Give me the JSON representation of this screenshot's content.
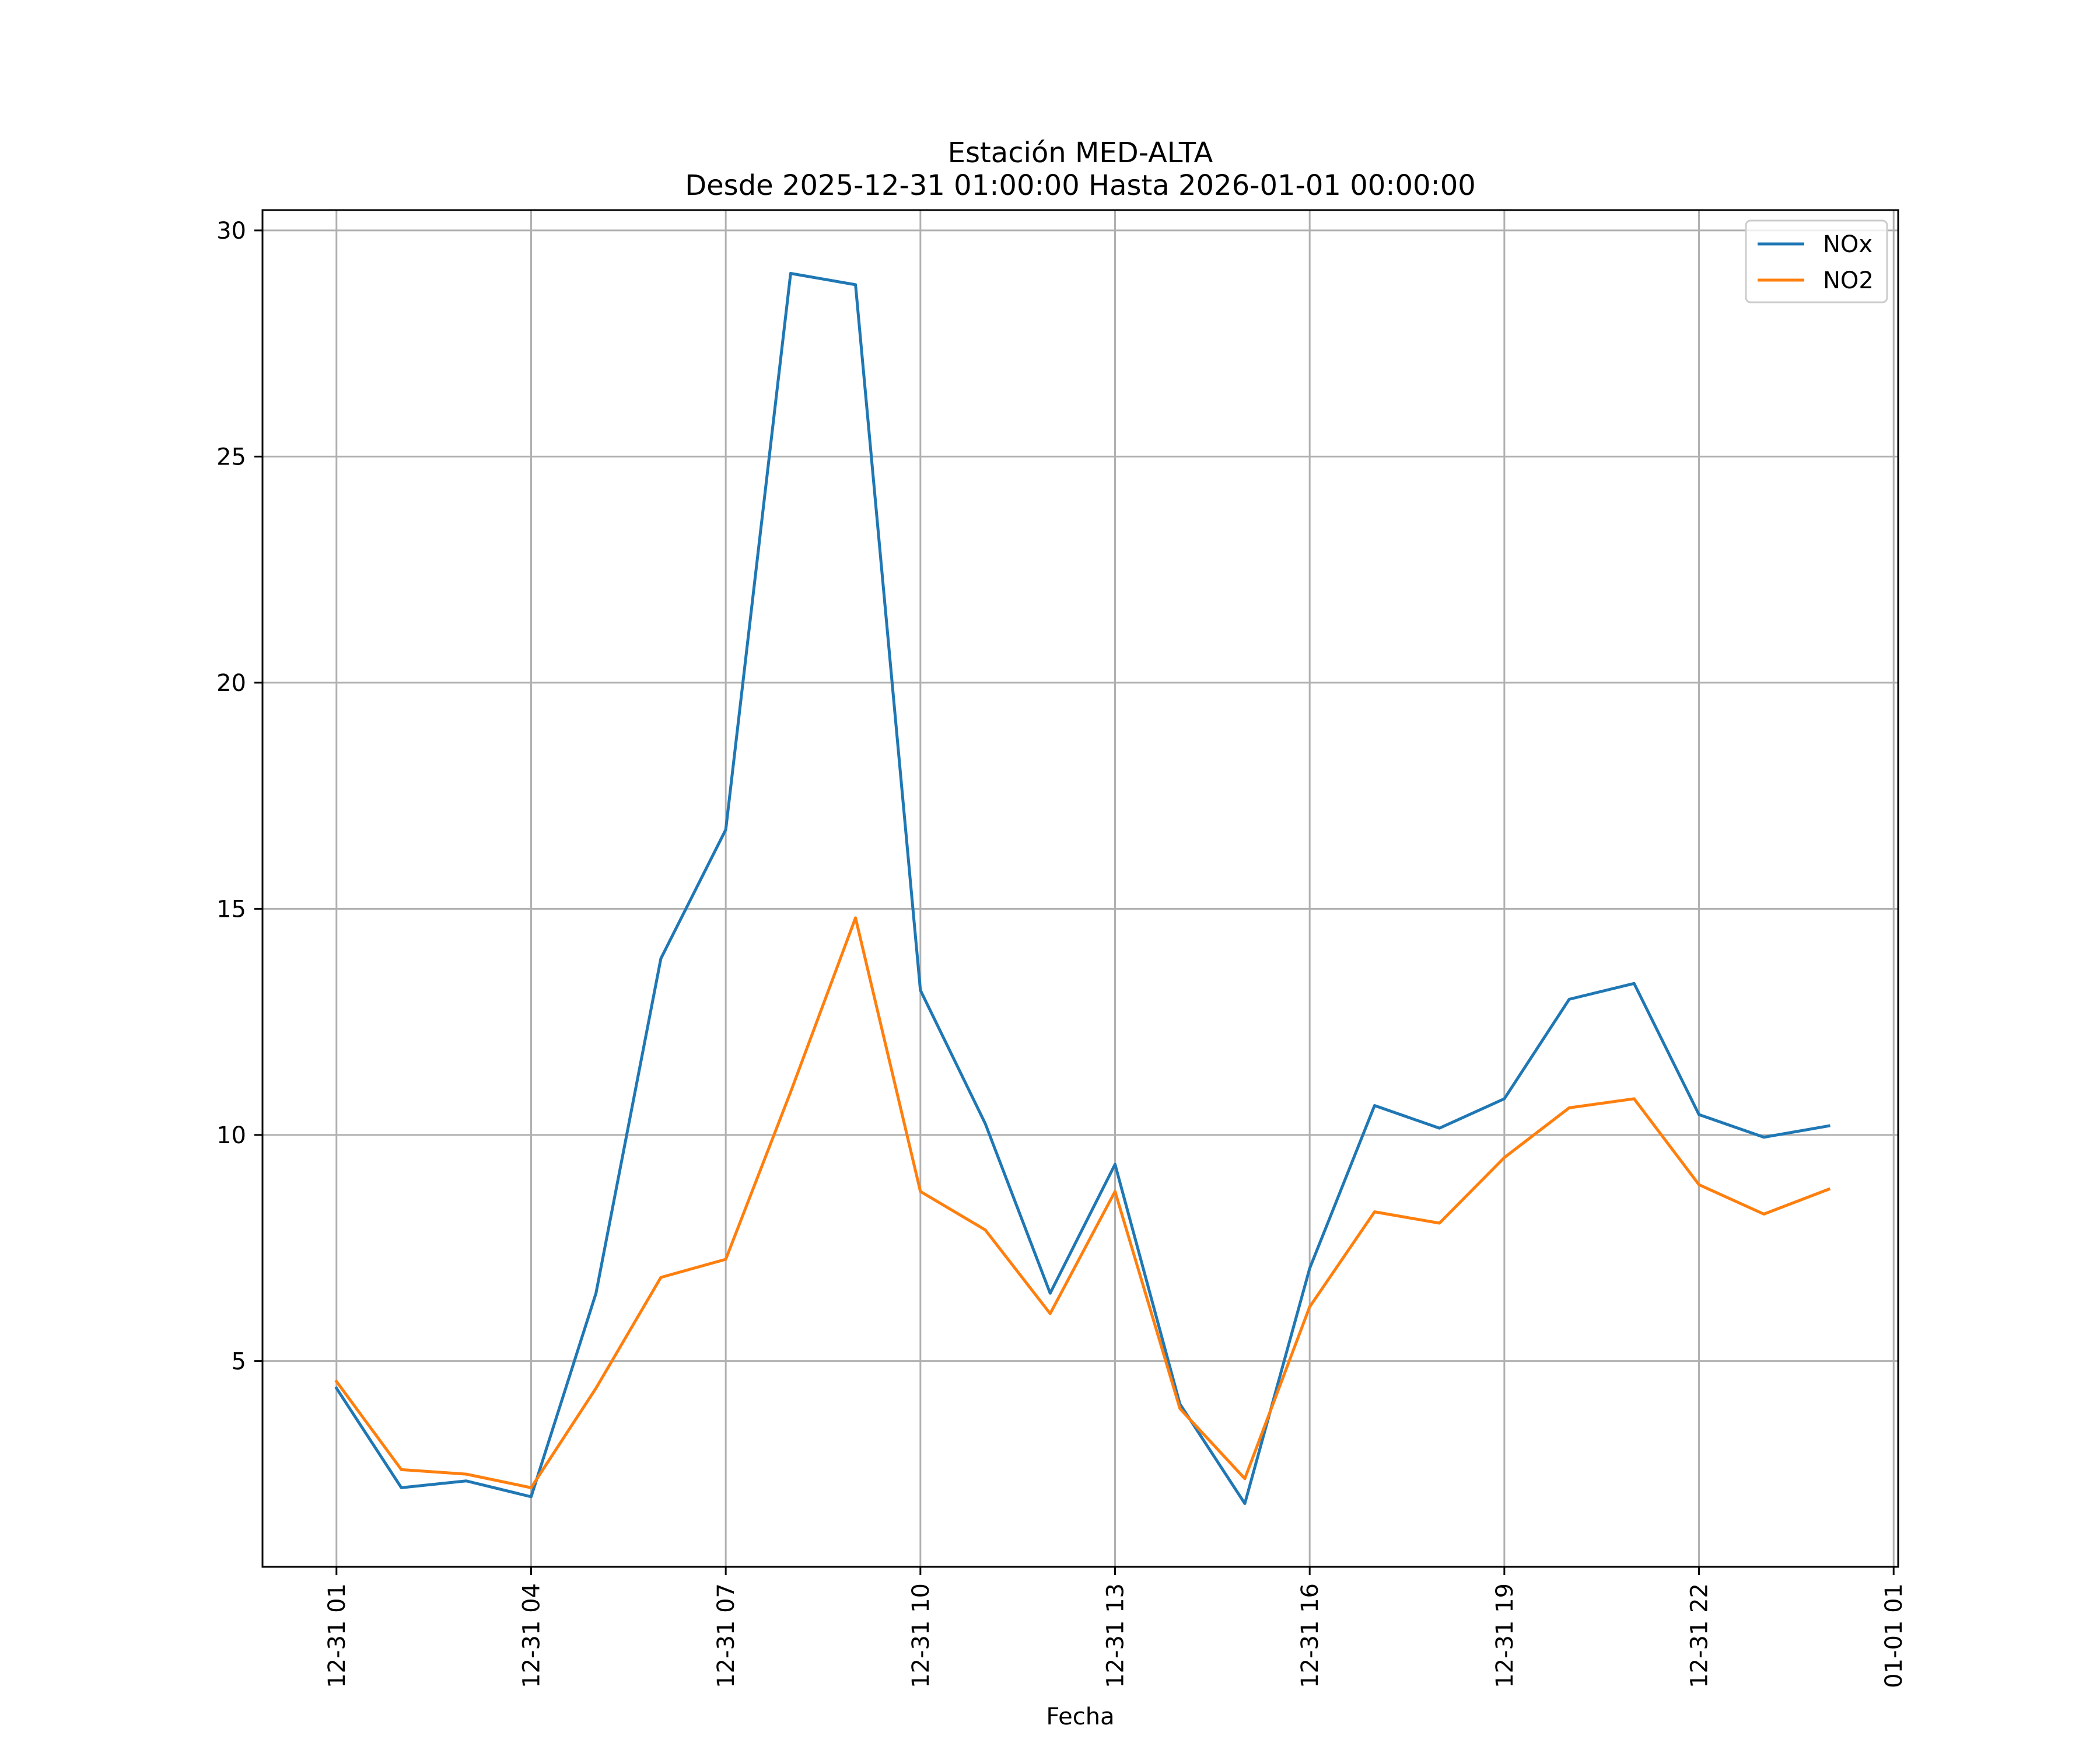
{
  "chart_data": {
    "type": "line",
    "title": "Estación MED-ALTA",
    "subtitle": "Desde 2025-12-31 01:00:00 Hasta 2026-01-01 00:00:00",
    "xlabel": "Fecha",
    "ylabel": "",
    "x_hours": [
      1,
      2,
      3,
      4,
      5,
      6,
      7,
      8,
      9,
      10,
      11,
      12,
      13,
      14,
      15,
      16,
      17,
      18,
      19,
      20,
      21,
      22,
      23,
      24
    ],
    "xlim": [
      -0.14,
      25.07
    ],
    "ylim": [
      0.45,
      30.45
    ],
    "x_ticks": [
      1,
      4,
      7,
      10,
      13,
      16,
      19,
      22,
      25
    ],
    "x_tick_labels": [
      "12-31 01",
      "12-31 04",
      "12-31 07",
      "12-31 10",
      "12-31 13",
      "12-31 16",
      "12-31 19",
      "12-31 22",
      "01-01 01"
    ],
    "y_ticks": [
      5,
      10,
      15,
      20,
      25,
      30
    ],
    "y_tick_labels": [
      "5",
      "10",
      "15",
      "20",
      "25",
      "30"
    ],
    "grid": true,
    "legend_position": "top-right",
    "series": [
      {
        "name": "NOx",
        "color": "#1f77b4",
        "values": [
          4.4,
          2.2,
          2.35,
          2.0,
          6.5,
          13.9,
          16.75,
          29.05,
          28.8,
          13.2,
          10.25,
          6.5,
          9.35,
          4.05,
          1.85,
          7.05,
          10.65,
          10.15,
          10.8,
          13.0,
          13.35,
          10.45,
          9.95,
          10.2
        ]
      },
      {
        "name": "NO2",
        "color": "#ff7f0e",
        "values": [
          4.55,
          2.6,
          2.5,
          2.2,
          4.4,
          6.85,
          7.25,
          10.95,
          14.8,
          8.75,
          7.9,
          6.05,
          8.75,
          3.95,
          2.4,
          6.2,
          8.3,
          8.05,
          9.5,
          10.6,
          10.8,
          8.9,
          8.25,
          8.8
        ]
      }
    ]
  }
}
